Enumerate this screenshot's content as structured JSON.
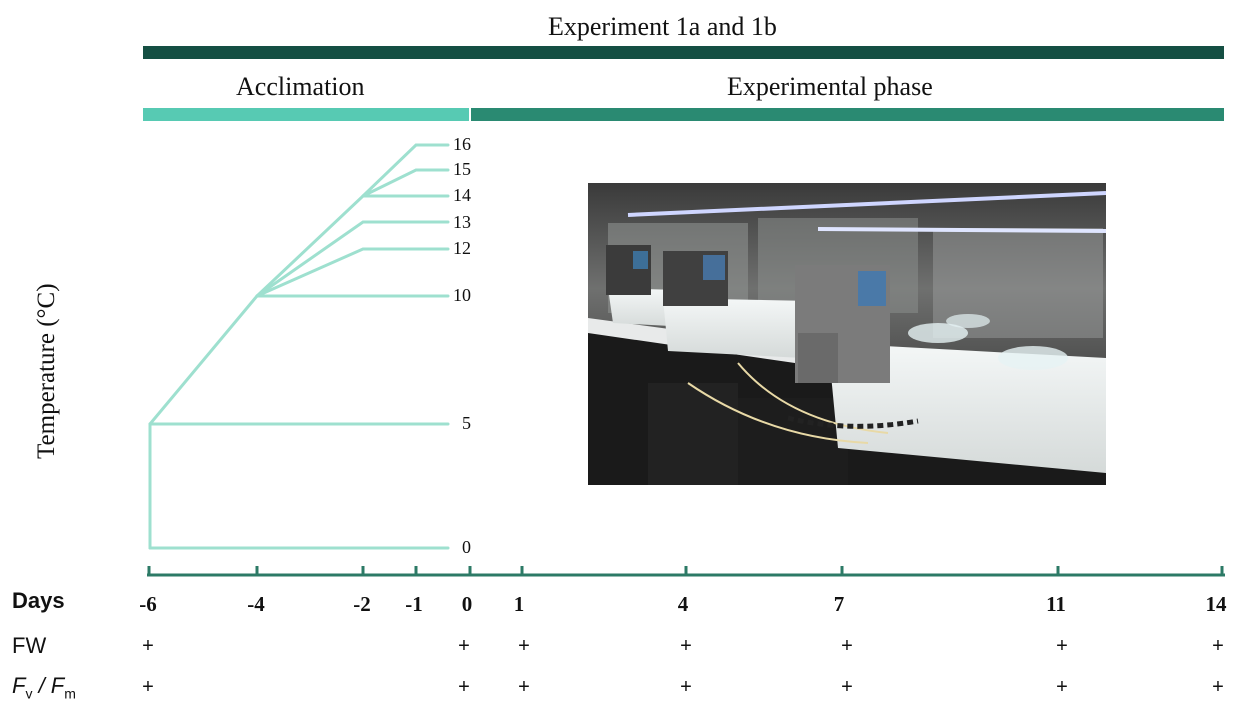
{
  "header": {
    "title": "Experiment 1a and 1b",
    "acclimation_label": "Acclimation",
    "experimental_label": "Experimental phase"
  },
  "axis": {
    "ylabel": "Temperature (°C)",
    "days_label": "Days",
    "days": [
      "-6",
      "-4",
      "-2",
      "-1",
      "0",
      "1",
      "4",
      "7",
      "11",
      "14"
    ]
  },
  "temperature_lines": {
    "labels": [
      "16",
      "15",
      "14",
      "13",
      "12",
      "10",
      "5",
      "0"
    ]
  },
  "rows": {
    "fw_label": "FW",
    "fvfm_label_f1": "F",
    "fvfm_label_sub1": "v",
    "fvfm_label_sep": " / ",
    "fvfm_label_f2": "F",
    "fvfm_label_sub2": "m",
    "marker": "+",
    "fw_days": [
      "-6",
      "0",
      "1",
      "4",
      "7",
      "11",
      "14"
    ],
    "fvfm_days": [
      "-6",
      "0",
      "1",
      "4",
      "7",
      "11",
      "14"
    ]
  },
  "colors": {
    "dark_bar": "#154f43",
    "acclimation_bar": "#57cab3",
    "experimental_bar": "#2a8a72",
    "temp_lines": "#9ee0cf",
    "axis": "#2c7a66"
  }
}
